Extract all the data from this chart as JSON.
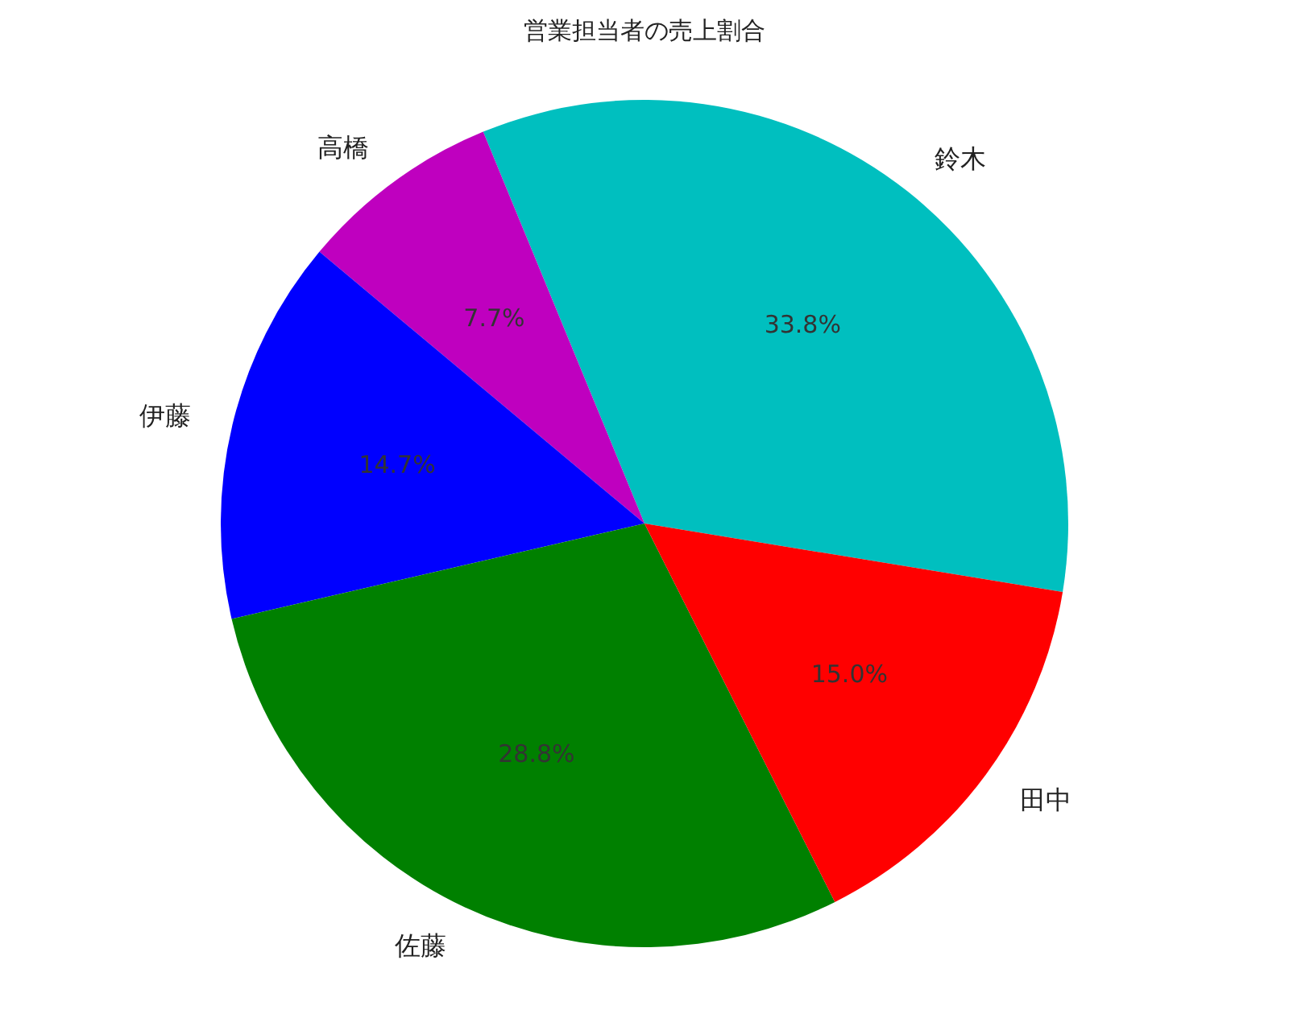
{
  "chart_data": {
    "type": "pie",
    "title": "営業担当者の売上割合",
    "categories": [
      "鈴木",
      "高橋",
      "伊藤",
      "佐藤",
      "田中"
    ],
    "values": [
      33.8,
      7.7,
      14.7,
      28.8,
      15.0
    ],
    "value_labels": [
      "33.8%",
      "7.7%",
      "14.7%",
      "28.8%",
      "15.0%"
    ],
    "colors": [
      "#00bfbf",
      "#bf00bf",
      "#0000ff",
      "#008000",
      "#ff0000"
    ]
  }
}
